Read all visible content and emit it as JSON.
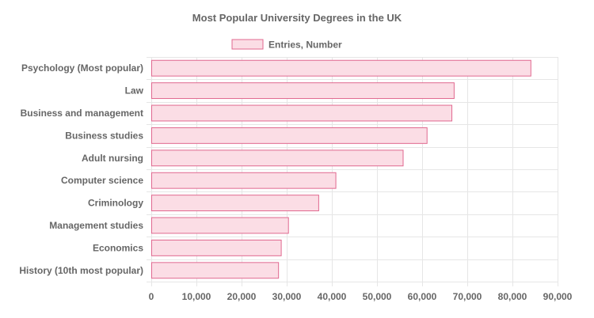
{
  "chart_data": {
    "type": "bar",
    "orientation": "horizontal",
    "title": "Most Popular University Degrees in the UK",
    "categories": [
      "Psychology (Most popular)",
      "Law",
      "Business and management",
      "Business studies",
      "Adult nursing",
      "Computer science",
      "Criminology",
      "Management studies",
      "Economics",
      "History (10th most popular)"
    ],
    "series": [
      {
        "name": "Entries, Number",
        "values": [
          84000,
          67000,
          66500,
          61000,
          55700,
          40800,
          37000,
          30300,
          28700,
          28100
        ]
      }
    ],
    "xlim": [
      0,
      90000
    ],
    "xticks": [
      0,
      10000,
      20000,
      30000,
      40000,
      50000,
      60000,
      70000,
      80000,
      90000
    ],
    "xtick_labels": [
      "0",
      "10,000",
      "20,000",
      "30,000",
      "40,000",
      "50,000",
      "60,000",
      "70,000",
      "80,000",
      "90,000"
    ],
    "grid": true,
    "legend_position": "top",
    "colors": {
      "bar_fill": "#fbdde5",
      "bar_stroke": "#e0688f"
    }
  }
}
